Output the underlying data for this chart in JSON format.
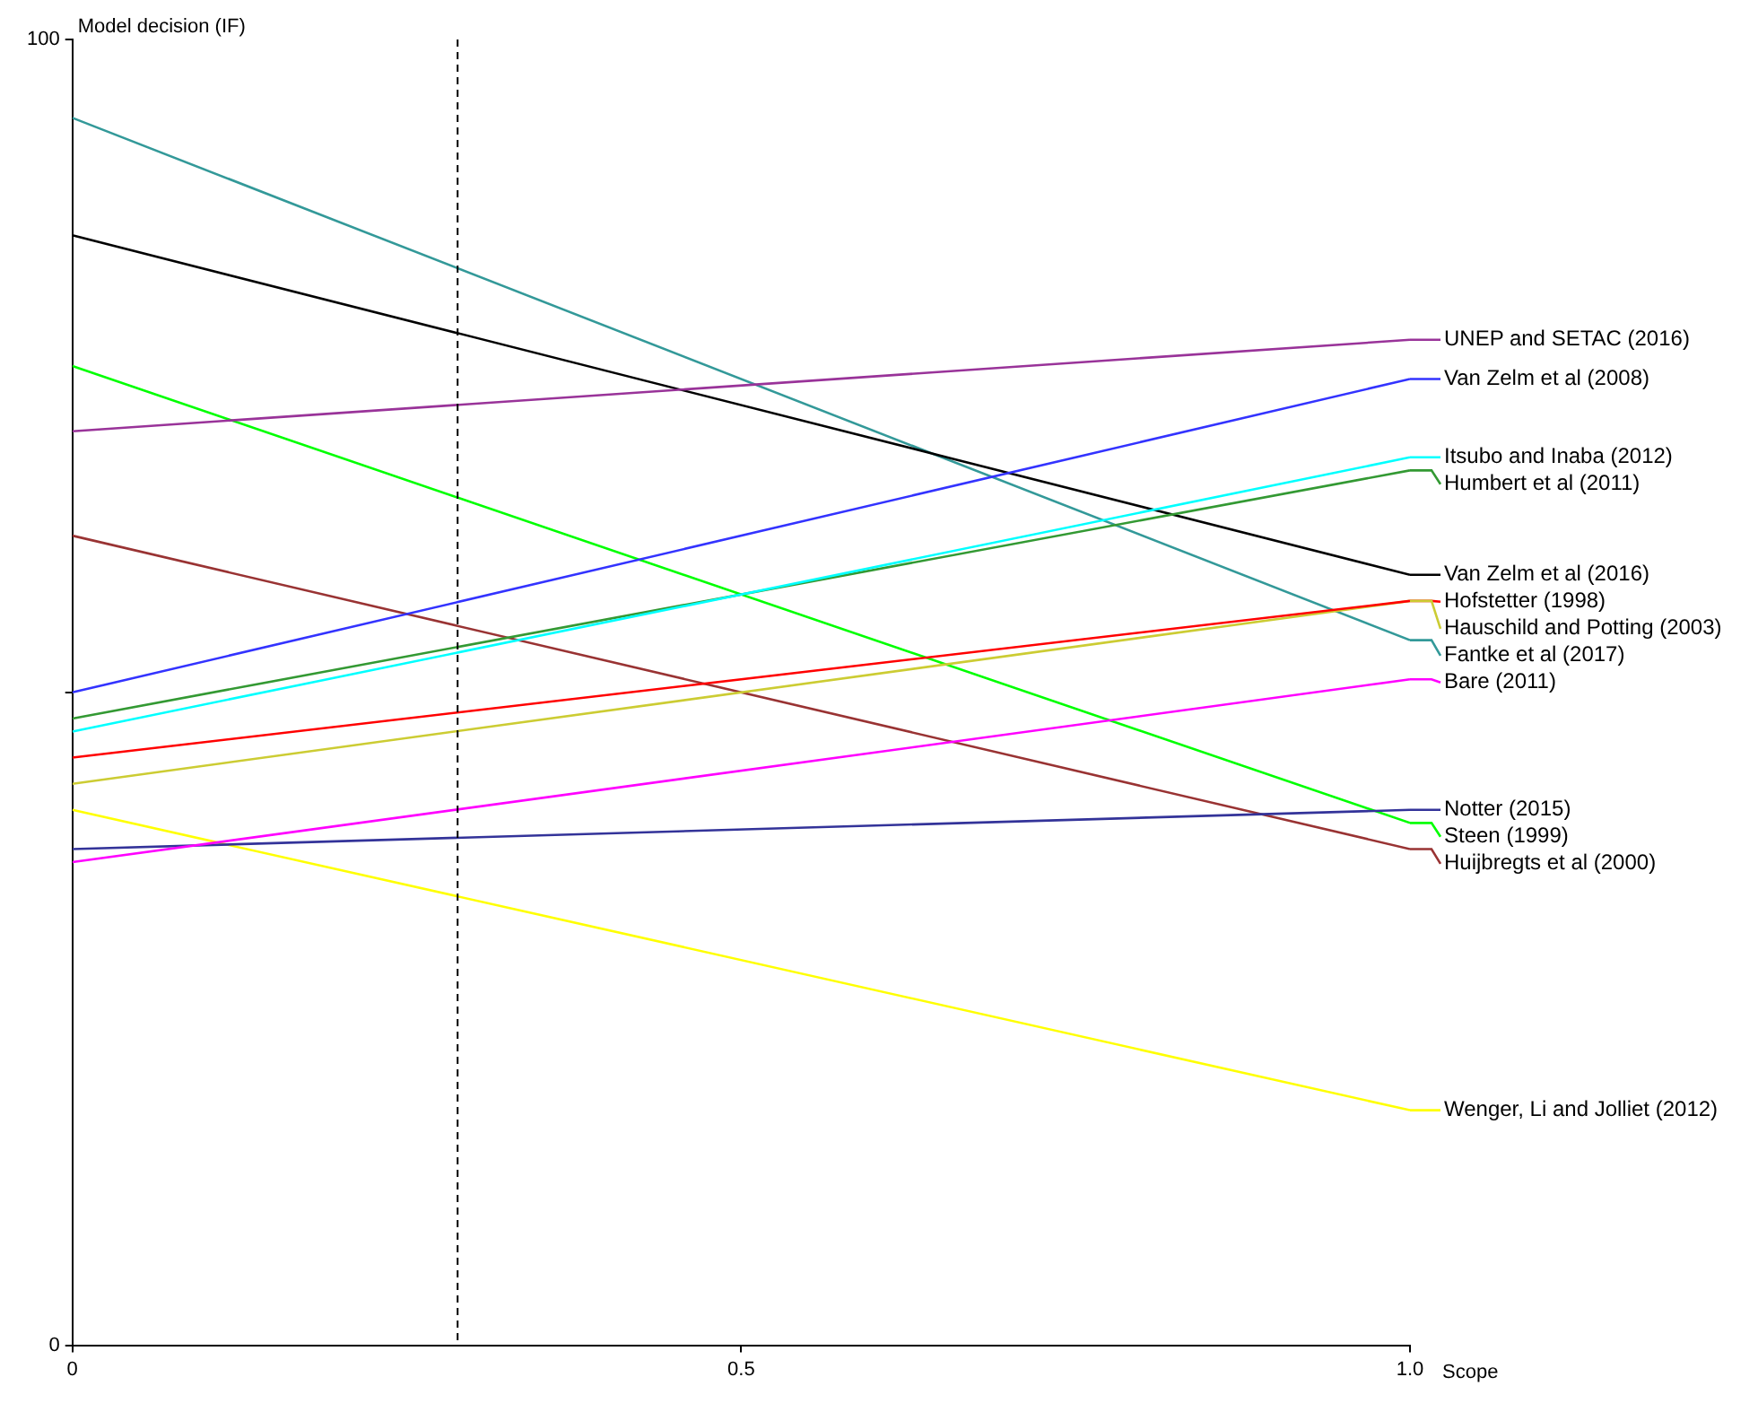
{
  "chart_data": {
    "type": "line",
    "xlabel": "Scope",
    "ylabel": "Model decision (IF)",
    "x": [
      0,
      1
    ],
    "xlim": [
      0,
      1
    ],
    "xticks": [
      0,
      0.5,
      {
        "value": 1,
        "label": "1.0"
      }
    ],
    "ylim": [
      0,
      100
    ],
    "yticks": [
      0,
      {
        "value": 50,
        "label": null
      },
      100
    ],
    "legend": "right",
    "marker": "none",
    "line_style": "solid",
    "ref_lines": [
      {
        "axis": "x",
        "value": 0.288,
        "color": "#000000",
        "line_style": "dashed"
      }
    ],
    "series": [
      {
        "name": "UNEP and SETAC (2016)",
        "color": "#993399",
        "values": [
          70,
          77
        ]
      },
      {
        "name": "Van Zelm et al (2008)",
        "color": "#3333ff",
        "values": [
          50,
          74
        ]
      },
      {
        "name": "Itsubo and Inaba (2012)",
        "color": "#00ffff",
        "values": [
          47,
          68
        ]
      },
      {
        "name": "Humbert et al (2011)",
        "color": "#339933",
        "values": [
          48,
          67
        ]
      },
      {
        "name": "Van Zelm et al (2016)",
        "color": "#000000",
        "values": [
          85,
          59
        ]
      },
      {
        "name": "Hofstetter (1998)",
        "color": "#ff0000",
        "values": [
          45,
          57
        ]
      },
      {
        "name": "Hauschild and Potting (2003)",
        "color": "#cccc33",
        "values": [
          43,
          57
        ]
      },
      {
        "name": "Fantke et al (2017)",
        "color": "#339999",
        "values": [
          94,
          54
        ]
      },
      {
        "name": "Bare (2011)",
        "color": "#ff00ff",
        "values": [
          37,
          51
        ]
      },
      {
        "name": "Notter (2015)",
        "color": "#333399",
        "values": [
          38,
          41
        ]
      },
      {
        "name": "Steen (1999)",
        "color": "#00ff00",
        "values": [
          75,
          40
        ]
      },
      {
        "name": "Huijbregts et al (2000)",
        "color": "#993333",
        "values": [
          62,
          38
        ]
      },
      {
        "name": "Wenger, Li and Jolliet (2012)",
        "color": "#ffff00",
        "values": [
          41,
          18
        ]
      }
    ]
  }
}
